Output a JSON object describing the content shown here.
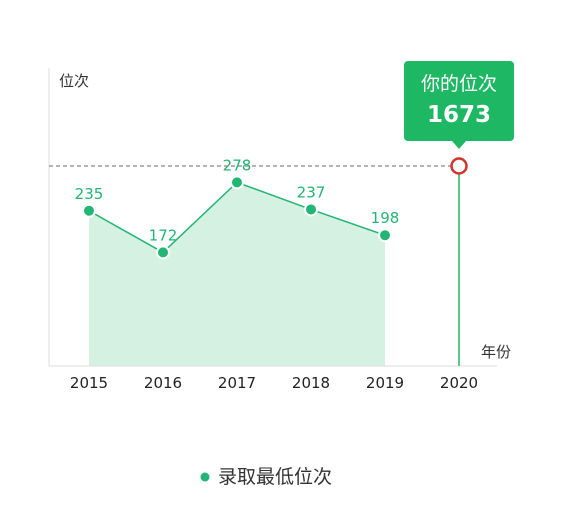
{
  "chart_data": {
    "type": "area",
    "categories": [
      "2015",
      "2016",
      "2017",
      "2018",
      "2019",
      "2020"
    ],
    "series": [
      {
        "name": "录取最低位次",
        "values": [
          235,
          172,
          278,
          237,
          198,
          null
        ]
      }
    ],
    "xlabel": "年份",
    "ylabel": "位次",
    "ylim": [
      0,
      380
    ],
    "grid": false,
    "legend_position": "bottom-center",
    "reference": {
      "x": "2020",
      "value": 1673,
      "title": "你的位次",
      "value_label": "1673"
    },
    "colors": {
      "line": "#22b573",
      "fill": "#d4f1e1",
      "label": "#22b573",
      "callout_bg": "#1eb864",
      "marker_ring": "#d0342c",
      "dash_line": "#888888",
      "axis": "#dddddd",
      "vertical_line": "#5ac98a"
    }
  }
}
